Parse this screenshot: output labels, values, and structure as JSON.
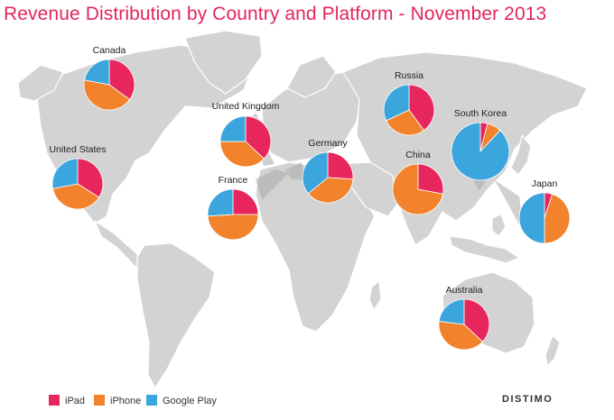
{
  "chart_data": {
    "type": "pie",
    "title": "Revenue Distribution by Country and Platform - November 2013",
    "series_names": [
      "iPad",
      "iPhone",
      "Google Play"
    ],
    "colors": {
      "iPad": "#e8265e",
      "iPhone": "#f2832c",
      "Google Play": "#3aa6dd"
    },
    "countries": [
      {
        "name": "Canada",
        "values": [
          35,
          43,
          22
        ]
      },
      {
        "name": "United States",
        "values": [
          34,
          38,
          28
        ]
      },
      {
        "name": "United Kingdom",
        "values": [
          37,
          38,
          25
        ]
      },
      {
        "name": "France",
        "values": [
          25,
          49,
          26
        ]
      },
      {
        "name": "Germany",
        "values": [
          26,
          38,
          36
        ]
      },
      {
        "name": "Russia",
        "values": [
          40,
          28,
          32
        ]
      },
      {
        "name": "South Korea",
        "values": [
          4,
          8,
          88
        ]
      },
      {
        "name": "China",
        "values": [
          28,
          72,
          0
        ]
      },
      {
        "name": "Japan",
        "values": [
          5,
          45,
          50
        ]
      },
      {
        "name": "Australia",
        "values": [
          37,
          40,
          23
        ]
      }
    ],
    "legend_position": "bottom-left"
  },
  "legend": [
    {
      "label": "iPad",
      "color": "#e8265e"
    },
    {
      "label": "iPhone",
      "color": "#f2832c"
    },
    {
      "label": "Google Play",
      "color": "#3aa6dd"
    }
  ],
  "brand": "DISTIMO"
}
